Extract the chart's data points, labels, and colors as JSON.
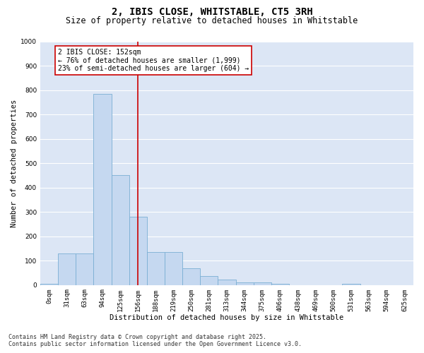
{
  "title_line1": "2, IBIS CLOSE, WHITSTABLE, CT5 3RH",
  "title_line2": "Size of property relative to detached houses in Whitstable",
  "xlabel": "Distribution of detached houses by size in Whitstable",
  "ylabel": "Number of detached properties",
  "categories": [
    "0sqm",
    "31sqm",
    "63sqm",
    "94sqm",
    "125sqm",
    "156sqm",
    "188sqm",
    "219sqm",
    "250sqm",
    "281sqm",
    "313sqm",
    "344sqm",
    "375sqm",
    "406sqm",
    "438sqm",
    "469sqm",
    "500sqm",
    "531sqm",
    "563sqm",
    "594sqm",
    "625sqm"
  ],
  "values": [
    5,
    130,
    130,
    785,
    450,
    280,
    135,
    135,
    70,
    38,
    22,
    12,
    12,
    5,
    0,
    0,
    0,
    5,
    0,
    0,
    0
  ],
  "bar_color": "#c5d8f0",
  "bar_edgecolor": "#7aafd4",
  "vline_x": 5,
  "vline_color": "#cc0000",
  "annotation_text": "2 IBIS CLOSE: 152sqm\n← 76% of detached houses are smaller (1,999)\n23% of semi-detached houses are larger (604) →",
  "annotation_box_color": "#ffffff",
  "annotation_box_edgecolor": "#cc0000",
  "ylim": [
    0,
    1000
  ],
  "yticks": [
    0,
    100,
    200,
    300,
    400,
    500,
    600,
    700,
    800,
    900,
    1000
  ],
  "background_color": "#dce6f5",
  "grid_color": "#ffffff",
  "fig_background": "#ffffff",
  "footer_line1": "Contains HM Land Registry data © Crown copyright and database right 2025.",
  "footer_line2": "Contains public sector information licensed under the Open Government Licence v3.0.",
  "title_fontsize": 10,
  "subtitle_fontsize": 8.5,
  "axis_label_fontsize": 7.5,
  "tick_fontsize": 6.5,
  "annotation_fontsize": 7,
  "footer_fontsize": 6
}
